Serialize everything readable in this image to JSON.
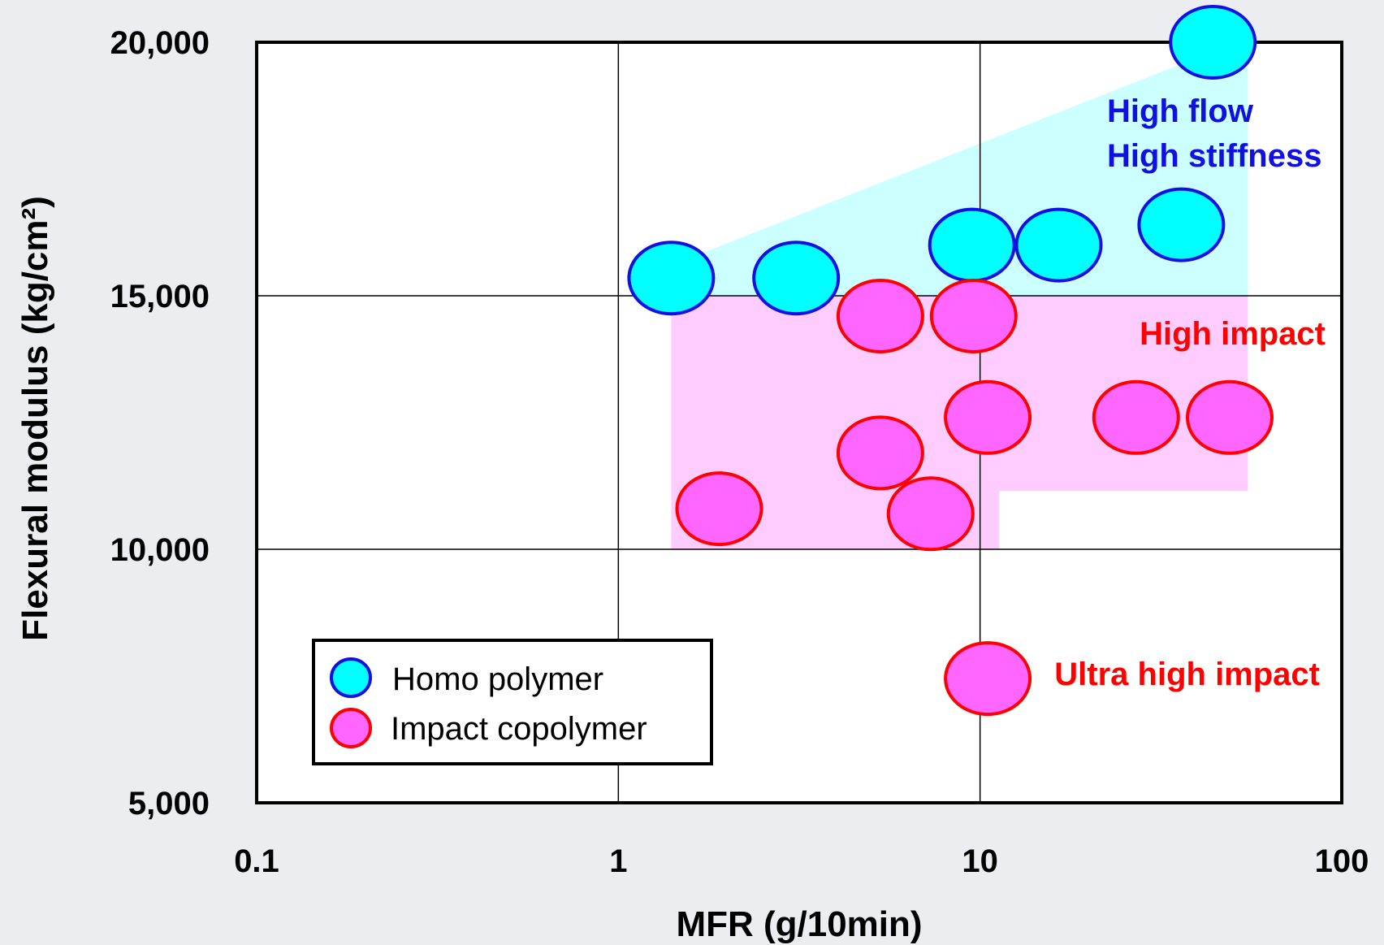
{
  "chart_data": {
    "type": "scatter",
    "title": "",
    "xlabel": "MFR (g/10min)",
    "ylabel": "Flexural modulus (kg/cm²)",
    "x_scale": "log",
    "xlim": [
      0.1,
      100
    ],
    "ylim": [
      5000,
      20000
    ],
    "grid": true,
    "x_ticks": [
      {
        "value": 0.1,
        "label": "0.1"
      },
      {
        "value": 1,
        "label": "1"
      },
      {
        "value": 10,
        "label": "10"
      },
      {
        "value": 100,
        "label": "100"
      }
    ],
    "y_ticks": [
      {
        "value": 5000,
        "label": "5,000"
      },
      {
        "value": 10000,
        "label": "10,000"
      },
      {
        "value": 15000,
        "label": "15,000"
      },
      {
        "value": 20000,
        "label": "20,000"
      }
    ],
    "legend_position": "lower-left",
    "series": [
      {
        "name": "Homo polymer",
        "fill": "#00ffff",
        "stroke": "#1010e0",
        "points": [
          {
            "x": 1.4,
            "y": 15350
          },
          {
            "x": 3.1,
            "y": 15350
          },
          {
            "x": 9.5,
            "y": 16000
          },
          {
            "x": 16.5,
            "y": 16000
          },
          {
            "x": 36,
            "y": 16400
          },
          {
            "x": 44,
            "y": 20000
          }
        ]
      },
      {
        "name": "Impact copolymer",
        "fill": "#ff66ff",
        "stroke": "#ff0000",
        "points": [
          {
            "x": 5.3,
            "y": 14600
          },
          {
            "x": 9.6,
            "y": 14600
          },
          {
            "x": 10.5,
            "y": 12600
          },
          {
            "x": 27,
            "y": 12600
          },
          {
            "x": 49,
            "y": 12600
          },
          {
            "x": 5.3,
            "y": 11900
          },
          {
            "x": 1.9,
            "y": 10800
          },
          {
            "x": 7.3,
            "y": 10700
          },
          {
            "x": 10.5,
            "y": 7450
          }
        ]
      }
    ],
    "regions": [
      {
        "name": "homo-region",
        "fill": "#ccffff",
        "polygon": [
          [
            1.4,
            15000
          ],
          [
            1.4,
            15600
          ],
          [
            40,
            19700
          ],
          [
            55,
            19700
          ],
          [
            55,
            15000
          ]
        ]
      },
      {
        "name": "impact-region",
        "fill": "#ffccff",
        "polygon": [
          [
            1.4,
            10000
          ],
          [
            1.4,
            15000
          ],
          [
            55,
            15000
          ],
          [
            55,
            11150
          ],
          [
            11.3,
            11150
          ],
          [
            11.3,
            10000
          ]
        ]
      }
    ],
    "annotations": [
      {
        "key": "high_flow",
        "text": "High flow",
        "color": "#1010e0"
      },
      {
        "key": "high_stiffness",
        "text": "High stiffness",
        "color": "#1010e0"
      },
      {
        "key": "high_impact",
        "text": "High impact",
        "color": "#ff0000"
      },
      {
        "key": "ultra_high_impact",
        "text": "Ultra high impact",
        "color": "#ff0000"
      }
    ]
  }
}
